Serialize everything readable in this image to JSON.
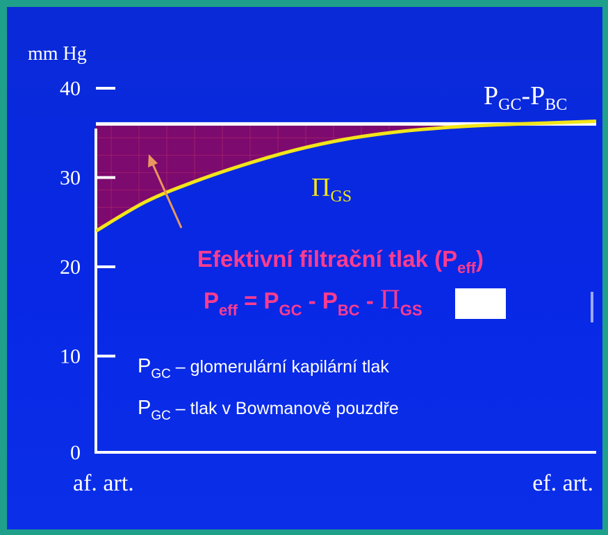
{
  "chart_data": {
    "type": "line",
    "title": "",
    "ylabel": "mm Hg",
    "ylim": [
      0,
      40
    ],
    "yticks": [
      "0",
      "10",
      "20",
      "30",
      "40"
    ],
    "x_labels": {
      "start": "af. art.",
      "end": "ef. art."
    },
    "series": [
      {
        "name": "P",
        "sub": "GC",
        "name2": "-P",
        "sub2": "BC",
        "x": [
          0,
          1
        ],
        "values": [
          36,
          36
        ]
      },
      {
        "name": "Π",
        "sub": "GS",
        "x": [
          0,
          0.1,
          0.2,
          0.3,
          0.4,
          0.5,
          0.6,
          0.7,
          0.8,
          0.9,
          1.0
        ],
        "values": [
          24,
          27.3,
          29.6,
          31.5,
          33.1,
          34.3,
          35.1,
          35.6,
          35.9,
          36.1,
          36.3
        ]
      }
    ],
    "colors": {
      "line_top": "#ffffff",
      "line_curve": "#f2e51a",
      "fill": "#7d0a6e",
      "arrow": "#e8985e",
      "accent": "#ff3c8e"
    }
  },
  "annotations": {
    "peff_title": "Efektivní filtrační tlak (P",
    "peff_title_sub": "eff",
    "peff_title_end": ")",
    "eq_p": "P",
    "eq_sub1": "eff",
    "eq_mid1": " = P",
    "eq_sub2": "GC",
    "eq_mid2": " - P",
    "eq_sub3": "BC",
    "eq_mid3": " - ",
    "eq_pi": "Π",
    "eq_sub4": "GS"
  },
  "legend_lines": [
    {
      "symbol": "P",
      "sub": "GC",
      "text": " – glomerulární kapilární tlak"
    },
    {
      "symbol": "P",
      "sub": "GC",
      "text": " – tlak v  Bowmanově pouzdře"
    }
  ]
}
